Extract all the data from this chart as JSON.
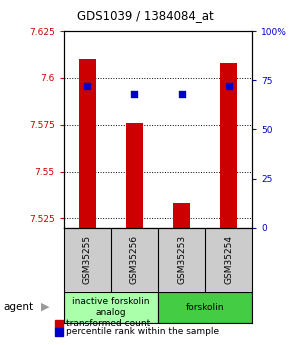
{
  "title": "GDS1039 / 1384084_at",
  "samples": [
    "GSM35255",
    "GSM35256",
    "GSM35253",
    "GSM35254"
  ],
  "transformed_counts": [
    7.61,
    7.576,
    7.533,
    7.608
  ],
  "percentile_ranks": [
    72,
    68,
    68,
    72
  ],
  "ylim_left": [
    7.52,
    7.625
  ],
  "ylim_right": [
    0,
    100
  ],
  "yticks_left": [
    7.525,
    7.55,
    7.575,
    7.6,
    7.625
  ],
  "yticks_right": [
    0,
    25,
    50,
    75,
    100
  ],
  "ytick_labels_left": [
    "7.525",
    "7.55",
    "7.575",
    "7.6",
    "7.625"
  ],
  "ytick_labels_right": [
    "0",
    "25",
    "50",
    "75",
    "100%"
  ],
  "bar_color": "#cc0000",
  "dot_color": "#0000cc",
  "bar_width": 0.35,
  "agent_groups": [
    {
      "label": "inactive forskolin\nanalog",
      "samples": [
        0,
        1
      ],
      "color": "#aaffaa"
    },
    {
      "label": "forskolin",
      "samples": [
        2,
        3
      ],
      "color": "#44cc44"
    }
  ],
  "legend_red_label": "transformed count",
  "legend_blue_label": "percentile rank within the sample",
  "plot_bg_color": "#ffffff",
  "agent_label": "agent",
  "sample_box_color": "#cccccc",
  "title_fontsize": 8.5,
  "tick_fontsize": 6.5,
  "sample_fontsize": 6.5,
  "agent_fontsize": 6.5,
  "legend_fontsize": 6.5
}
